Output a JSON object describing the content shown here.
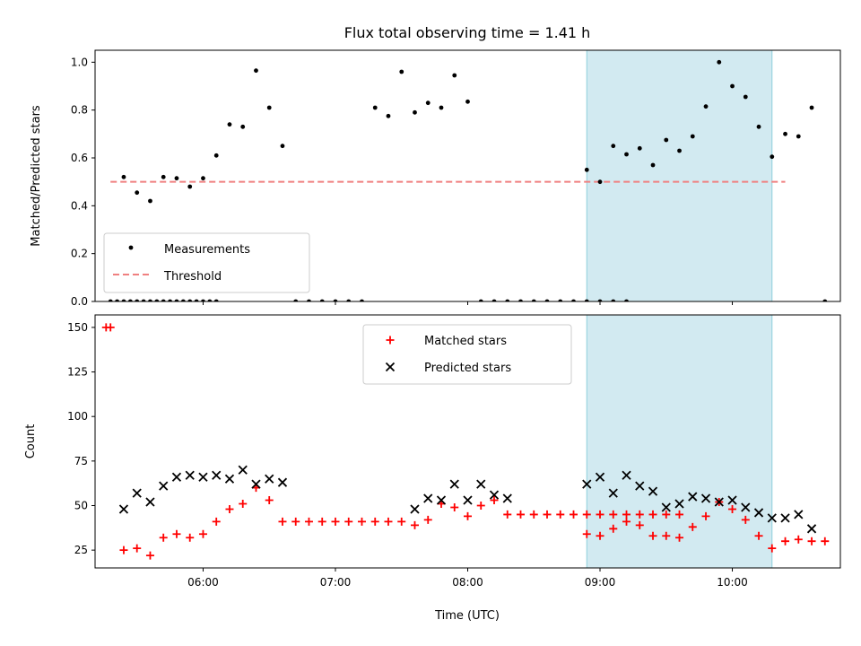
{
  "chart_data": [
    {
      "type": "scatter",
      "title": "Flux total observing time = 1.41 h",
      "xlabel": "",
      "ylabel": "Matched/Predicted stars",
      "xlim": [
        "05:11",
        "10:49"
      ],
      "ylim": [
        0,
        1.05
      ],
      "yticks": [
        0.0,
        0.2,
        0.4,
        0.6,
        0.8,
        1.0
      ],
      "yticklabels": [
        "0.0",
        "0.2",
        "0.4",
        "0.6",
        "0.8",
        "1.0"
      ],
      "legend": {
        "placement": "lower-left",
        "entries": [
          "Measurements",
          "Threshold"
        ]
      },
      "shaded_region": {
        "x_start": "08:54",
        "x_end": "10:18",
        "color": "#add8e6"
      },
      "threshold": {
        "value": 0.5,
        "x_start": "05:18",
        "x_end": "10:24",
        "color": "#f08080",
        "style": "dashed"
      },
      "series": [
        {
          "name": "Measurements",
          "marker": "dot",
          "color": "#000000",
          "points": [
            [
              "05:18",
              0.0
            ],
            [
              "05:21",
              0.0
            ],
            [
              "05:24",
              0.0
            ],
            [
              "05:27",
              0.0
            ],
            [
              "05:30",
              0.0
            ],
            [
              "05:33",
              0.0
            ],
            [
              "05:36",
              0.0
            ],
            [
              "05:39",
              0.0
            ],
            [
              "05:42",
              0.0
            ],
            [
              "05:45",
              0.0
            ],
            [
              "05:48",
              0.0
            ],
            [
              "05:51",
              0.0
            ],
            [
              "05:54",
              0.0
            ],
            [
              "05:57",
              0.0
            ],
            [
              "06:00",
              0.0
            ],
            [
              "06:03",
              0.0
            ],
            [
              "06:06",
              0.0
            ],
            [
              "05:24",
              0.52
            ],
            [
              "05:30",
              0.455
            ],
            [
              "05:36",
              0.42
            ],
            [
              "05:42",
              0.52
            ],
            [
              "05:48",
              0.515
            ],
            [
              "05:54",
              0.48
            ],
            [
              "06:00",
              0.515
            ],
            [
              "06:06",
              0.61
            ],
            [
              "06:12",
              0.74
            ],
            [
              "06:18",
              0.73
            ],
            [
              "06:24",
              0.965
            ],
            [
              "06:30",
              0.81
            ],
            [
              "06:36",
              0.65
            ],
            [
              "06:42",
              0.0
            ],
            [
              "06:48",
              0.0
            ],
            [
              "06:54",
              0.0
            ],
            [
              "07:00",
              0.0
            ],
            [
              "07:06",
              0.0
            ],
            [
              "07:12",
              0.0
            ],
            [
              "07:18",
              0.81
            ],
            [
              "07:24",
              0.775
            ],
            [
              "07:30",
              0.96
            ],
            [
              "07:36",
              0.79
            ],
            [
              "07:42",
              0.83
            ],
            [
              "07:48",
              0.81
            ],
            [
              "07:54",
              0.945
            ],
            [
              "08:00",
              0.835
            ],
            [
              "08:06",
              0.0
            ],
            [
              "08:12",
              0.0
            ],
            [
              "08:18",
              0.0
            ],
            [
              "08:24",
              0.0
            ],
            [
              "08:30",
              0.0
            ],
            [
              "08:36",
              0.0
            ],
            [
              "08:42",
              0.0
            ],
            [
              "08:48",
              0.0
            ],
            [
              "08:54",
              0.0
            ],
            [
              "09:00",
              0.0
            ],
            [
              "09:06",
              0.0
            ],
            [
              "09:12",
              0.0
            ],
            [
              "08:54",
              0.55
            ],
            [
              "09:00",
              0.5
            ],
            [
              "09:06",
              0.65
            ],
            [
              "09:12",
              0.615
            ],
            [
              "09:18",
              0.64
            ],
            [
              "09:24",
              0.57
            ],
            [
              "09:30",
              0.675
            ],
            [
              "09:36",
              0.63
            ],
            [
              "09:42",
              0.69
            ],
            [
              "09:48",
              0.815
            ],
            [
              "09:54",
              1.0
            ],
            [
              "10:00",
              0.9
            ],
            [
              "10:06",
              0.855
            ],
            [
              "10:12",
              0.73
            ],
            [
              "10:18",
              0.605
            ],
            [
              "10:24",
              0.7
            ],
            [
              "10:30",
              0.69
            ],
            [
              "10:36",
              0.81
            ],
            [
              "10:42",
              0.0
            ]
          ]
        }
      ]
    },
    {
      "type": "scatter",
      "title": "",
      "xlabel": "Time (UTC)",
      "ylabel": "Count",
      "xlim": [
        "05:11",
        "10:49"
      ],
      "ylim": [
        15,
        157
      ],
      "yticks": [
        25,
        50,
        75,
        100,
        125,
        150
      ],
      "yticklabels": [
        "25",
        "50",
        "75",
        "100",
        "125",
        "150"
      ],
      "xticks": [
        "06:00",
        "07:00",
        "08:00",
        "09:00",
        "10:00"
      ],
      "xticklabels": [
        "06:00",
        "07:00",
        "08:00",
        "09:00",
        "10:00"
      ],
      "legend": {
        "placement": "upper-center",
        "entries": [
          "Matched stars",
          "Predicted stars"
        ]
      },
      "shaded_region": {
        "x_start": "08:54",
        "x_end": "10:18",
        "color": "#add8e6"
      },
      "series": [
        {
          "name": "Matched stars",
          "marker": "plus",
          "color": "#ff0000",
          "points": [
            [
              "05:16",
              150
            ],
            [
              "05:18",
              150
            ],
            [
              "05:24",
              25
            ],
            [
              "05:30",
              26
            ],
            [
              "05:36",
              22
            ],
            [
              "05:42",
              32
            ],
            [
              "05:48",
              34
            ],
            [
              "05:54",
              32
            ],
            [
              "06:00",
              34
            ],
            [
              "06:06",
              41
            ],
            [
              "06:12",
              48
            ],
            [
              "06:18",
              51
            ],
            [
              "06:24",
              60
            ],
            [
              "06:30",
              53
            ],
            [
              "06:36",
              41
            ],
            [
              "06:42",
              41
            ],
            [
              "06:48",
              41
            ],
            [
              "06:54",
              41
            ],
            [
              "07:00",
              41
            ],
            [
              "07:06",
              41
            ],
            [
              "07:12",
              41
            ],
            [
              "07:18",
              41
            ],
            [
              "07:24",
              41
            ],
            [
              "07:30",
              41
            ],
            [
              "07:36",
              39
            ],
            [
              "07:42",
              42
            ],
            [
              "07:48",
              51
            ],
            [
              "07:54",
              49
            ],
            [
              "08:00",
              44
            ],
            [
              "08:06",
              50
            ],
            [
              "08:12",
              53
            ],
            [
              "08:18",
              45
            ],
            [
              "08:24",
              45
            ],
            [
              "08:30",
              45
            ],
            [
              "08:36",
              45
            ],
            [
              "08:42",
              45
            ],
            [
              "08:48",
              45
            ],
            [
              "08:54",
              45
            ],
            [
              "09:00",
              45
            ],
            [
              "09:06",
              45
            ],
            [
              "09:12",
              45
            ],
            [
              "09:18",
              45
            ],
            [
              "09:24",
              45
            ],
            [
              "09:30",
              45
            ],
            [
              "09:36",
              45
            ],
            [
              "08:54",
              34
            ],
            [
              "09:00",
              33
            ],
            [
              "09:06",
              37
            ],
            [
              "09:12",
              41
            ],
            [
              "09:18",
              39
            ],
            [
              "09:24",
              33
            ],
            [
              "09:30",
              33
            ],
            [
              "09:36",
              32
            ],
            [
              "09:42",
              38
            ],
            [
              "09:48",
              44
            ],
            [
              "09:54",
              52
            ],
            [
              "10:00",
              48
            ],
            [
              "10:06",
              42
            ],
            [
              "10:12",
              33
            ],
            [
              "10:18",
              26
            ],
            [
              "10:24",
              30
            ],
            [
              "10:30",
              31
            ],
            [
              "10:36",
              30
            ],
            [
              "10:42",
              30
            ]
          ]
        },
        {
          "name": "Predicted stars",
          "marker": "x",
          "color": "#000000",
          "points": [
            [
              "05:24",
              48
            ],
            [
              "05:30",
              57
            ],
            [
              "05:36",
              52
            ],
            [
              "05:42",
              61
            ],
            [
              "05:48",
              66
            ],
            [
              "05:54",
              67
            ],
            [
              "06:00",
              66
            ],
            [
              "06:06",
              67
            ],
            [
              "06:12",
              65
            ],
            [
              "06:18",
              70
            ],
            [
              "06:24",
              62
            ],
            [
              "06:30",
              65
            ],
            [
              "06:36",
              63
            ],
            [
              "07:36",
              48
            ],
            [
              "07:42",
              54
            ],
            [
              "07:48",
              53
            ],
            [
              "07:54",
              62
            ],
            [
              "08:00",
              53
            ],
            [
              "08:06",
              62
            ],
            [
              "08:12",
              56
            ],
            [
              "08:18",
              54
            ],
            [
              "08:54",
              62
            ],
            [
              "09:00",
              66
            ],
            [
              "09:06",
              57
            ],
            [
              "09:12",
              67
            ],
            [
              "09:18",
              61
            ],
            [
              "09:24",
              58
            ],
            [
              "09:30",
              49
            ],
            [
              "09:36",
              51
            ],
            [
              "09:42",
              55
            ],
            [
              "09:48",
              54
            ],
            [
              "09:54",
              52
            ],
            [
              "10:00",
              53
            ],
            [
              "10:06",
              49
            ],
            [
              "10:12",
              46
            ],
            [
              "10:18",
              43
            ],
            [
              "10:24",
              43
            ],
            [
              "10:30",
              45
            ],
            [
              "10:36",
              37
            ]
          ]
        }
      ]
    }
  ]
}
